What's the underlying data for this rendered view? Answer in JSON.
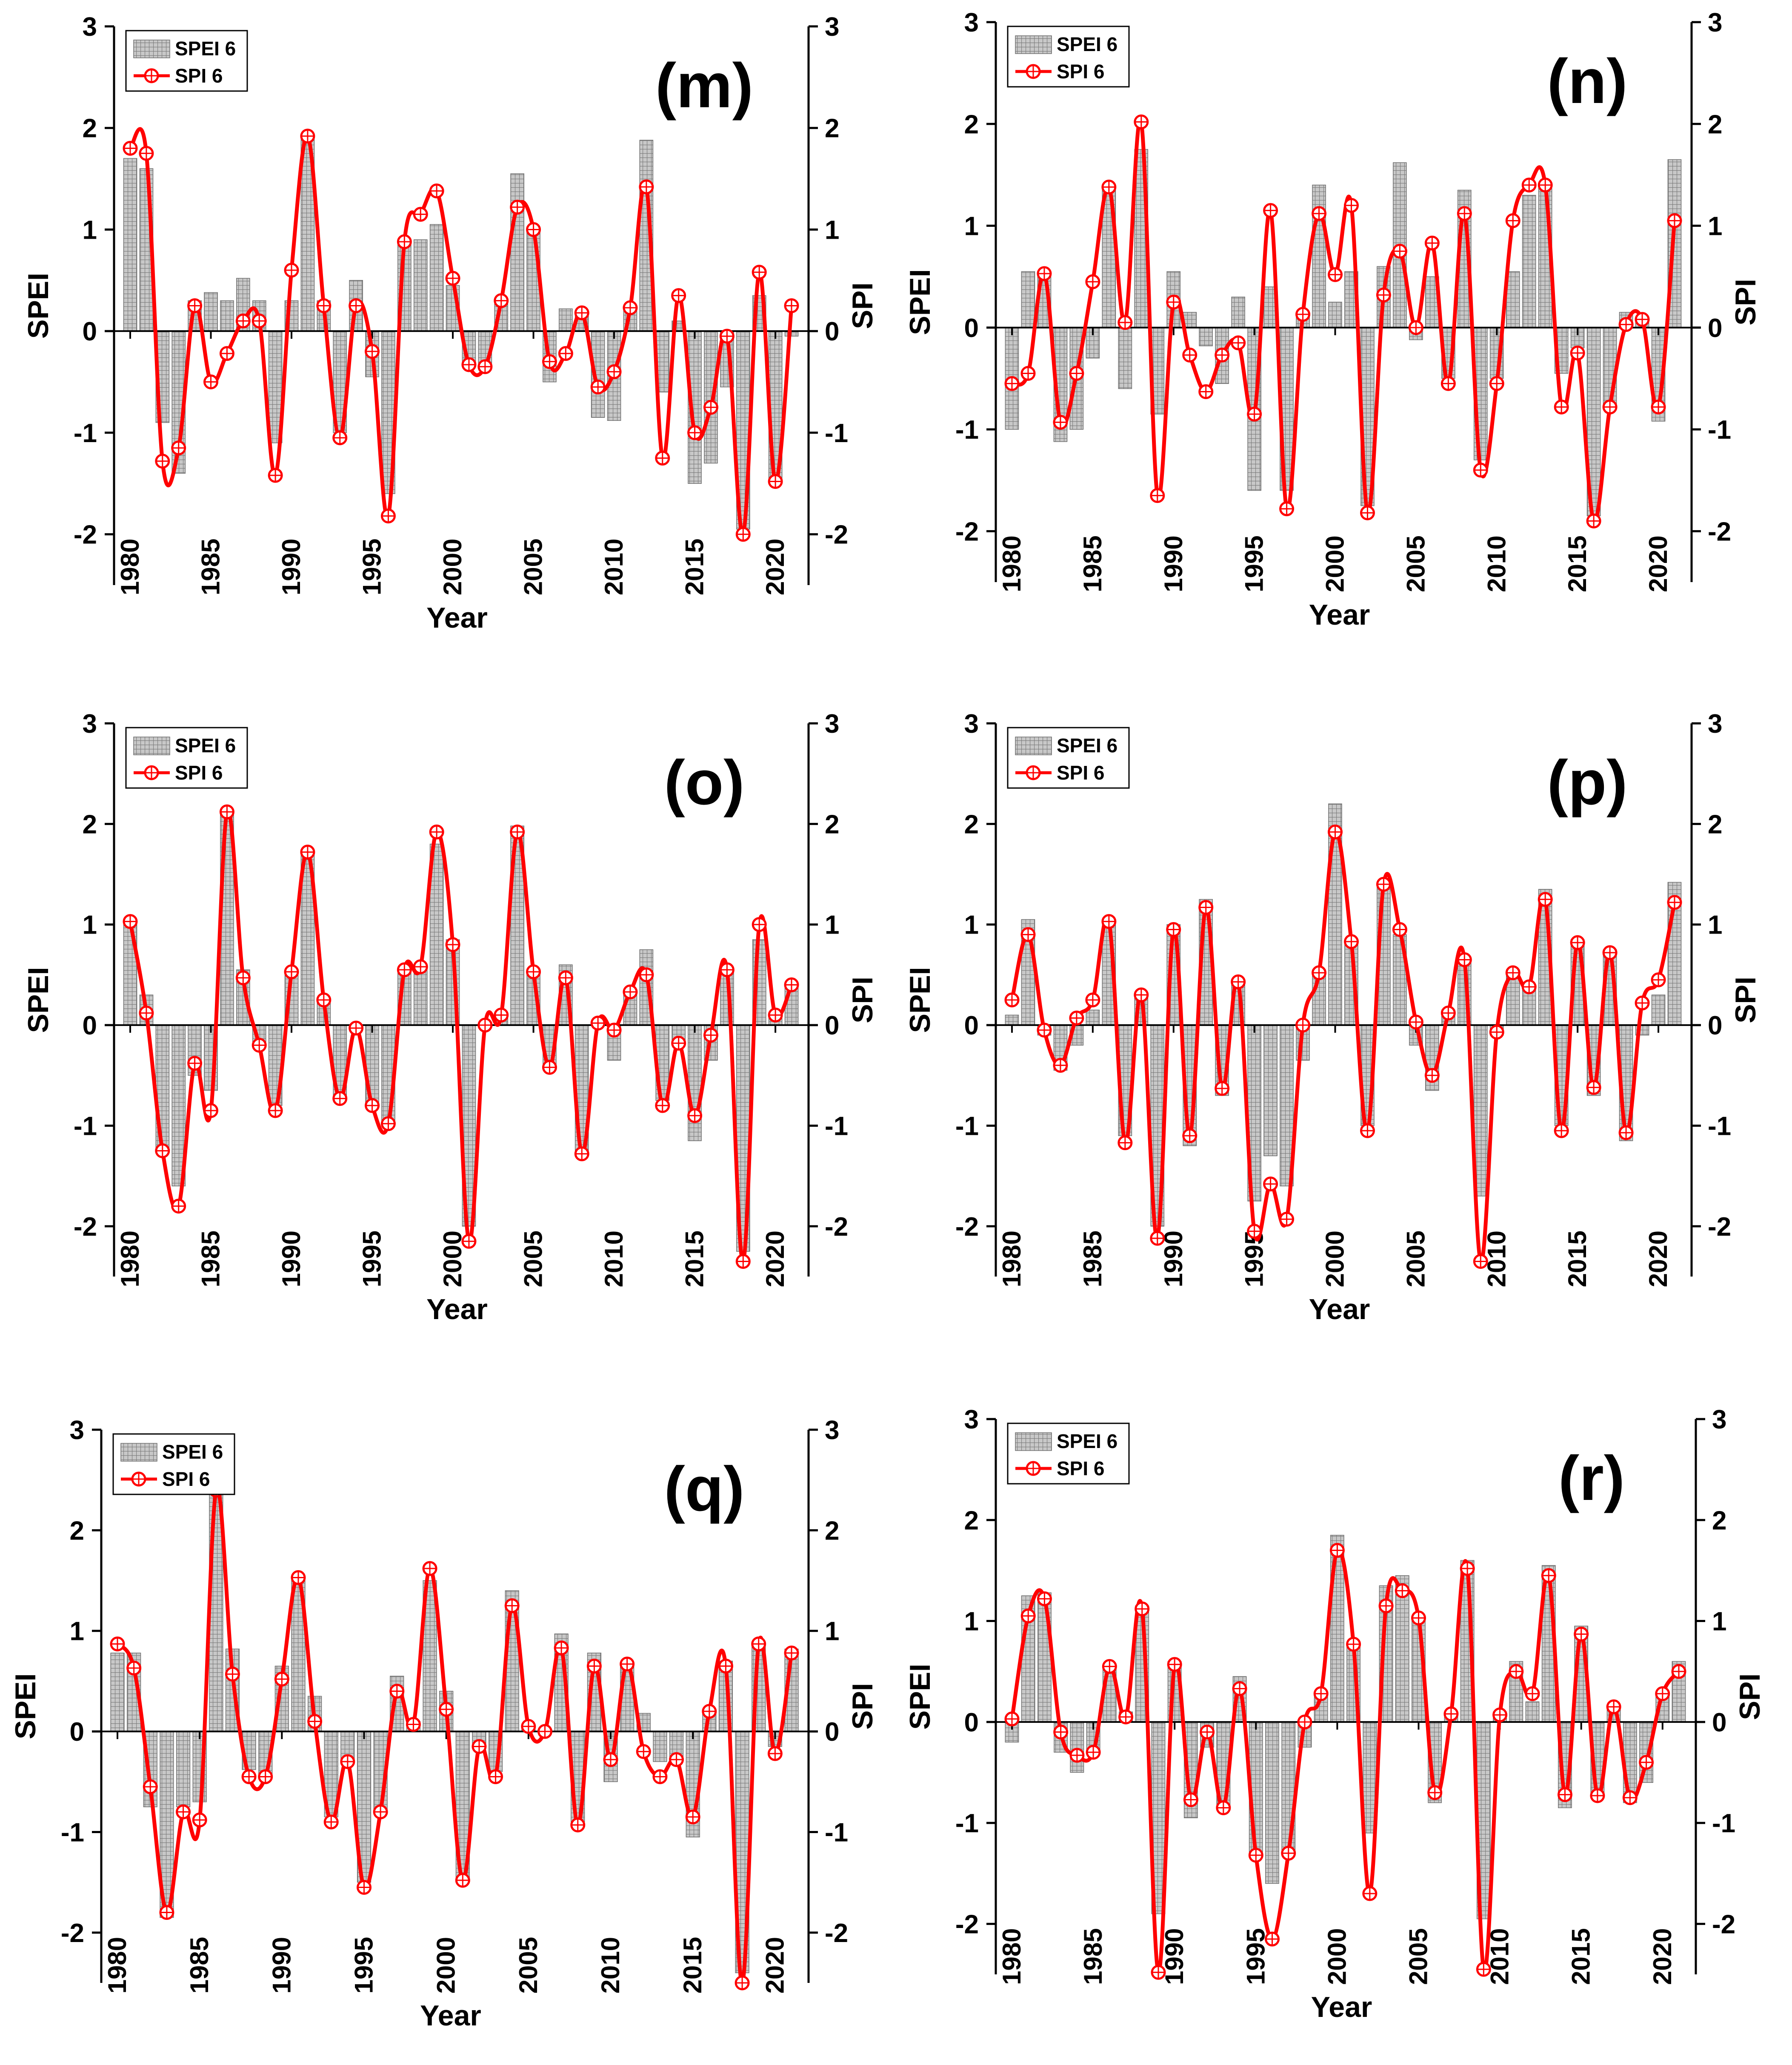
{
  "colors": {
    "spei_bar_fill": "#bdbdbd",
    "spei_bar_stroke": "#6e6e6e",
    "spi_line": "#ff0000",
    "axis": "#000000"
  },
  "chart_data": [
    {
      "panel_label": "(m)",
      "type": "bar+line",
      "xlabel": "Year",
      "ylabel_left": "SPEI",
      "ylabel_right": "SPI",
      "legend": [
        "SPEI 6",
        "SPI 6"
      ],
      "ylim": [
        -2.5,
        3
      ],
      "yticks": [
        -2,
        -1,
        0,
        1,
        2,
        3
      ],
      "x": [
        1980,
        1981,
        1982,
        1983,
        1984,
        1985,
        1986,
        1987,
        1988,
        1989,
        1990,
        1991,
        1992,
        1993,
        1994,
        1995,
        1996,
        1997,
        1998,
        1999,
        2000,
        2001,
        2002,
        2003,
        2004,
        2005,
        2006,
        2007,
        2008,
        2009,
        2010,
        2011,
        2012,
        2013,
        2014,
        2015,
        2016,
        2017,
        2018,
        2019,
        2020,
        2021
      ],
      "xticks": [
        "1980",
        "1985",
        "1990",
        "1995",
        "2000",
        "2005",
        "2010",
        "2015",
        "2020"
      ],
      "series": [
        {
          "name": "SPEI 6",
          "type": "bar",
          "values": [
            1.7,
            1.6,
            -0.9,
            -1.4,
            0.3,
            0.38,
            0.3,
            0.52,
            0.3,
            -1.1,
            0.3,
            1.9,
            0.3,
            -1.0,
            0.5,
            -0.45,
            -1.6,
            0.9,
            0.9,
            1.05,
            0.45,
            -0.35,
            -0.35,
            0.3,
            1.55,
            1.0,
            -0.5,
            0.22,
            0.2,
            -0.85,
            -0.88,
            0.25,
            1.88,
            -0.6,
            0.1,
            -1.5,
            -1.3,
            -0.55,
            -1.95,
            0.35,
            -1.5,
            -0.05
          ]
        },
        {
          "name": "SPI 6",
          "type": "line",
          "values": [
            1.8,
            1.75,
            -1.28,
            -1.15,
            0.25,
            -0.5,
            -0.22,
            0.1,
            0.1,
            -1.42,
            0.6,
            1.92,
            0.25,
            -1.05,
            0.25,
            -0.2,
            -1.82,
            0.88,
            1.15,
            1.38,
            0.52,
            -0.33,
            -0.35,
            0.3,
            1.22,
            1.0,
            -0.3,
            -0.22,
            0.18,
            -0.55,
            -0.4,
            0.23,
            1.42,
            -1.25,
            0.35,
            -1.0,
            -0.75,
            -0.05,
            -2.0,
            0.58,
            -1.48,
            0.25
          ]
        }
      ]
    },
    {
      "panel_label": "(n)",
      "type": "bar+line",
      "xlabel": "Year",
      "ylabel_left": "SPEI",
      "ylabel_right": "SPI",
      "legend": [
        "SPEI 6",
        "SPI 6"
      ],
      "ylim": [
        -2.5,
        3
      ],
      "yticks": [
        -2,
        -1,
        0,
        1,
        2,
        3
      ],
      "x": [
        1980,
        1981,
        1982,
        1983,
        1984,
        1985,
        1986,
        1987,
        1988,
        1989,
        1990,
        1991,
        1992,
        1993,
        1994,
        1995,
        1996,
        1997,
        1998,
        1999,
        2000,
        2001,
        2002,
        2003,
        2004,
        2005,
        2006,
        2007,
        2008,
        2009,
        2010,
        2011,
        2012,
        2013,
        2014,
        2015,
        2016,
        2017,
        2018,
        2019,
        2020,
        2021
      ],
      "xticks": [
        "1980",
        "1985",
        "1990",
        "1995",
        "2000",
        "2005",
        "2010",
        "2015",
        "2020"
      ],
      "series": [
        {
          "name": "SPEI 6",
          "type": "bar",
          "values": [
            -1.0,
            0.55,
            0.55,
            -1.12,
            -1.0,
            -0.3,
            1.4,
            -0.6,
            1.75,
            -0.85,
            0.55,
            0.15,
            -0.18,
            -0.55,
            0.3,
            -1.6,
            0.4,
            -1.6,
            0.1,
            1.4,
            0.25,
            0.55,
            -1.75,
            0.6,
            1.62,
            -0.12,
            0.5,
            -0.5,
            1.35,
            -1.3,
            -0.5,
            0.55,
            1.3,
            1.4,
            -0.45,
            -0.2,
            -1.85,
            -0.8,
            0.15,
            0.1,
            -0.92,
            1.65
          ]
        },
        {
          "name": "SPI 6",
          "type": "line",
          "values": [
            -0.55,
            -0.45,
            0.53,
            -0.93,
            -0.45,
            0.45,
            1.38,
            0.05,
            2.02,
            -1.65,
            0.25,
            -0.27,
            -0.63,
            -0.27,
            -0.15,
            -0.85,
            1.15,
            -1.78,
            0.13,
            1.12,
            0.52,
            1.2,
            -1.82,
            0.32,
            0.75,
            0.0,
            0.83,
            -0.55,
            1.12,
            -1.4,
            -0.55,
            1.05,
            1.4,
            1.4,
            -0.78,
            -0.25,
            -1.9,
            -0.78,
            0.03,
            0.08,
            -0.78,
            1.05
          ]
        }
      ]
    },
    {
      "panel_label": "(o)",
      "type": "bar+line",
      "xlabel": "Year",
      "ylabel_left": "SPEI",
      "ylabel_right": "SPI",
      "legend": [
        "SPEI 6",
        "SPI 6"
      ],
      "ylim": [
        -2.5,
        3
      ],
      "yticks": [
        -2,
        -1,
        0,
        1,
        2,
        3
      ],
      "x": [
        1980,
        1981,
        1982,
        1983,
        1984,
        1985,
        1986,
        1987,
        1988,
        1989,
        1990,
        1991,
        1992,
        1993,
        1994,
        1995,
        1996,
        1997,
        1998,
        1999,
        2000,
        2001,
        2002,
        2003,
        2004,
        2005,
        2006,
        2007,
        2008,
        2009,
        2010,
        2011,
        2012,
        2013,
        2014,
        2015,
        2016,
        2017,
        2018,
        2019,
        2020,
        2021
      ],
      "xticks": [
        "1980",
        "1985",
        "1990",
        "1995",
        "2000",
        "2005",
        "2010",
        "2015",
        "2020"
      ],
      "series": [
        {
          "name": "SPEI 6",
          "type": "bar",
          "values": [
            1.0,
            0.3,
            -1.25,
            -1.6,
            -0.5,
            -0.65,
            2.1,
            0.55,
            -0.2,
            -0.8,
            0.55,
            1.7,
            0.25,
            -0.75,
            0.0,
            -0.8,
            -0.95,
            0.55,
            0.55,
            1.8,
            0.85,
            -2.0,
            0.0,
            0.1,
            1.98,
            0.55,
            -0.4,
            0.6,
            -1.25,
            0.0,
            -0.35,
            0.35,
            0.75,
            -0.75,
            -0.2,
            -1.15,
            -0.35,
            0.55,
            -2.25,
            0.85,
            0.1,
            0.4
          ]
        },
        {
          "name": "SPI 6",
          "type": "line",
          "values": [
            1.03,
            0.12,
            -1.25,
            -1.8,
            -0.38,
            -0.85,
            2.12,
            0.47,
            -0.2,
            -0.85,
            0.53,
            1.72,
            0.25,
            -0.73,
            -0.03,
            -0.8,
            -0.98,
            0.55,
            0.58,
            1.92,
            0.8,
            -2.15,
            0.0,
            0.1,
            1.92,
            0.53,
            -0.42,
            0.47,
            -1.28,
            0.02,
            -0.05,
            0.33,
            0.5,
            -0.8,
            -0.18,
            -0.9,
            -0.1,
            0.55,
            -2.35,
            1.0,
            0.1,
            0.4
          ]
        }
      ]
    },
    {
      "panel_label": "(p)",
      "type": "bar+line",
      "xlabel": "Year",
      "ylabel_left": "SPEI",
      "ylabel_right": "SPI",
      "legend": [
        "SPEI 6",
        "SPI 6"
      ],
      "ylim": [
        -2.5,
        3
      ],
      "yticks": [
        -2,
        -1,
        0,
        1,
        2,
        3
      ],
      "x": [
        1980,
        1981,
        1982,
        1983,
        1984,
        1985,
        1986,
        1987,
        1988,
        1989,
        1990,
        1991,
        1992,
        1993,
        1994,
        1995,
        1996,
        1997,
        1998,
        1999,
        2000,
        2001,
        2002,
        2003,
        2004,
        2005,
        2006,
        2007,
        2008,
        2009,
        2010,
        2011,
        2012,
        2013,
        2014,
        2015,
        2016,
        2017,
        2018,
        2019,
        2020,
        2021
      ],
      "xticks": [
        "1980",
        "1985",
        "1990",
        "1995",
        "2000",
        "2005",
        "2010",
        "2015",
        "2020"
      ],
      "series": [
        {
          "name": "SPEI 6",
          "type": "bar",
          "values": [
            0.1,
            1.05,
            -0.1,
            -0.45,
            -0.2,
            0.15,
            1.0,
            -1.1,
            0.3,
            -2.0,
            1.0,
            -1.2,
            1.25,
            -0.7,
            0.45,
            -1.75,
            -1.3,
            -1.6,
            -0.35,
            0.55,
            2.2,
            0.85,
            -1.0,
            1.4,
            0.9,
            -0.2,
            -0.65,
            0.15,
            0.65,
            -1.7,
            -0.1,
            0.55,
            0.35,
            1.35,
            -1.0,
            0.85,
            -0.7,
            0.75,
            -1.15,
            -0.1,
            0.3,
            1.42
          ]
        },
        {
          "name": "SPI 6",
          "type": "line",
          "values": [
            0.25,
            0.9,
            -0.05,
            -0.4,
            0.07,
            0.25,
            1.03,
            -1.17,
            0.3,
            -2.12,
            0.95,
            -1.1,
            1.17,
            -0.63,
            0.43,
            -2.05,
            -1.58,
            -1.93,
            0.0,
            0.52,
            1.92,
            0.83,
            -1.05,
            1.4,
            0.95,
            0.03,
            -0.5,
            0.12,
            0.65,
            -2.35,
            -0.07,
            0.52,
            0.38,
            1.25,
            -1.05,
            0.82,
            -0.62,
            0.72,
            -1.07,
            0.22,
            0.45,
            1.22
          ]
        }
      ]
    },
    {
      "panel_label": "(q)",
      "type": "bar+line",
      "xlabel": "Year",
      "ylabel_left": "SPEI",
      "ylabel_right": "SPI",
      "legend": [
        "SPEI 6",
        "SPI 6"
      ],
      "ylim": [
        -2.5,
        3
      ],
      "yticks": [
        -2,
        -1,
        0,
        1,
        2,
        3
      ],
      "x": [
        1980,
        1981,
        1982,
        1983,
        1984,
        1985,
        1986,
        1987,
        1988,
        1989,
        1990,
        1991,
        1992,
        1993,
        1994,
        1995,
        1996,
        1997,
        1998,
        1999,
        2000,
        2001,
        2002,
        2003,
        2004,
        2005,
        2006,
        2007,
        2008,
        2009,
        2010,
        2011,
        2012,
        2013,
        2014,
        2015,
        2016,
        2017,
        2018,
        2019,
        2020,
        2021
      ],
      "xticks": [
        "1980",
        "1985",
        "1990",
        "1995",
        "2000",
        "2005",
        "2010",
        "2015",
        "2020"
      ],
      "series": [
        {
          "name": "SPEI 6",
          "type": "bar",
          "values": [
            0.78,
            0.78,
            -0.75,
            -1.85,
            -0.75,
            -0.7,
            2.4,
            0.82,
            -0.38,
            -0.45,
            0.65,
            1.5,
            0.35,
            -0.85,
            -0.3,
            -1.5,
            -0.8,
            0.55,
            0.1,
            1.5,
            0.4,
            -1.5,
            -0.15,
            -0.4,
            1.4,
            0.05,
            0.0,
            0.97,
            -0.9,
            0.78,
            -0.5,
            0.68,
            0.18,
            -0.3,
            -0.3,
            -1.05,
            0.2,
            0.7,
            -2.4,
            0.85,
            -0.15,
            0.82
          ]
        },
        {
          "name": "SPI 6",
          "type": "line",
          "values": [
            0.87,
            0.63,
            -0.55,
            -1.8,
            -0.8,
            -0.88,
            2.4,
            0.57,
            -0.45,
            -0.45,
            0.52,
            1.53,
            0.1,
            -0.9,
            -0.3,
            -1.55,
            -0.8,
            0.4,
            0.07,
            1.62,
            0.22,
            -1.48,
            -0.15,
            -0.45,
            1.25,
            0.05,
            0.0,
            0.83,
            -0.93,
            0.65,
            -0.28,
            0.67,
            -0.2,
            -0.45,
            -0.28,
            -0.85,
            0.2,
            0.65,
            -2.5,
            0.87,
            -0.22,
            0.78
          ]
        }
      ]
    },
    {
      "panel_label": "(r)",
      "type": "bar+line",
      "xlabel": "Year",
      "ylabel_left": "SPEI",
      "ylabel_right": "SPI",
      "legend": [
        "SPEI 6",
        "SPI 6"
      ],
      "ylim": [
        -2.5,
        3
      ],
      "yticks": [
        -2,
        -1,
        0,
        1,
        2,
        3
      ],
      "x": [
        1980,
        1981,
        1982,
        1983,
        1984,
        1985,
        1986,
        1987,
        1988,
        1989,
        1990,
        1991,
        1992,
        1993,
        1994,
        1995,
        1996,
        1997,
        1998,
        1999,
        2000,
        2001,
        2002,
        2003,
        2004,
        2005,
        2006,
        2007,
        2008,
        2009,
        2010,
        2011,
        2012,
        2013,
        2014,
        2015,
        2016,
        2017,
        2018,
        2019,
        2020,
        2021
      ],
      "xticks": [
        "1980",
        "1985",
        "1990",
        "1995",
        "2000",
        "2005",
        "2010",
        "2015",
        "2020"
      ],
      "series": [
        {
          "name": "SPEI 6",
          "type": "bar",
          "values": [
            -0.2,
            1.25,
            1.28,
            -0.3,
            -0.5,
            -0.3,
            0.55,
            0.1,
            1.15,
            -1.9,
            0.6,
            -0.95,
            -0.25,
            -0.85,
            0.45,
            -1.3,
            -1.6,
            -1.3,
            -0.25,
            0.3,
            1.85,
            0.75,
            -1.1,
            1.35,
            1.45,
            1.05,
            -0.8,
            0.1,
            1.6,
            -1.95,
            0.1,
            0.6,
            0.2,
            1.55,
            -0.85,
            0.95,
            -0.75,
            0.15,
            -0.8,
            -0.6,
            0.3,
            0.6
          ]
        },
        {
          "name": "SPI 6",
          "type": "line",
          "values": [
            0.03,
            1.05,
            1.22,
            -0.1,
            -0.33,
            -0.3,
            0.55,
            0.05,
            1.12,
            -2.48,
            0.57,
            -0.77,
            -0.1,
            -0.85,
            0.33,
            -1.32,
            -2.15,
            -1.3,
            0.0,
            0.28,
            1.7,
            0.77,
            -1.7,
            1.15,
            1.3,
            1.03,
            -0.7,
            0.08,
            1.52,
            -2.45,
            0.07,
            0.5,
            0.28,
            1.45,
            -0.72,
            0.87,
            -0.73,
            0.15,
            -0.75,
            -0.4,
            0.28,
            0.5
          ]
        }
      ]
    }
  ]
}
